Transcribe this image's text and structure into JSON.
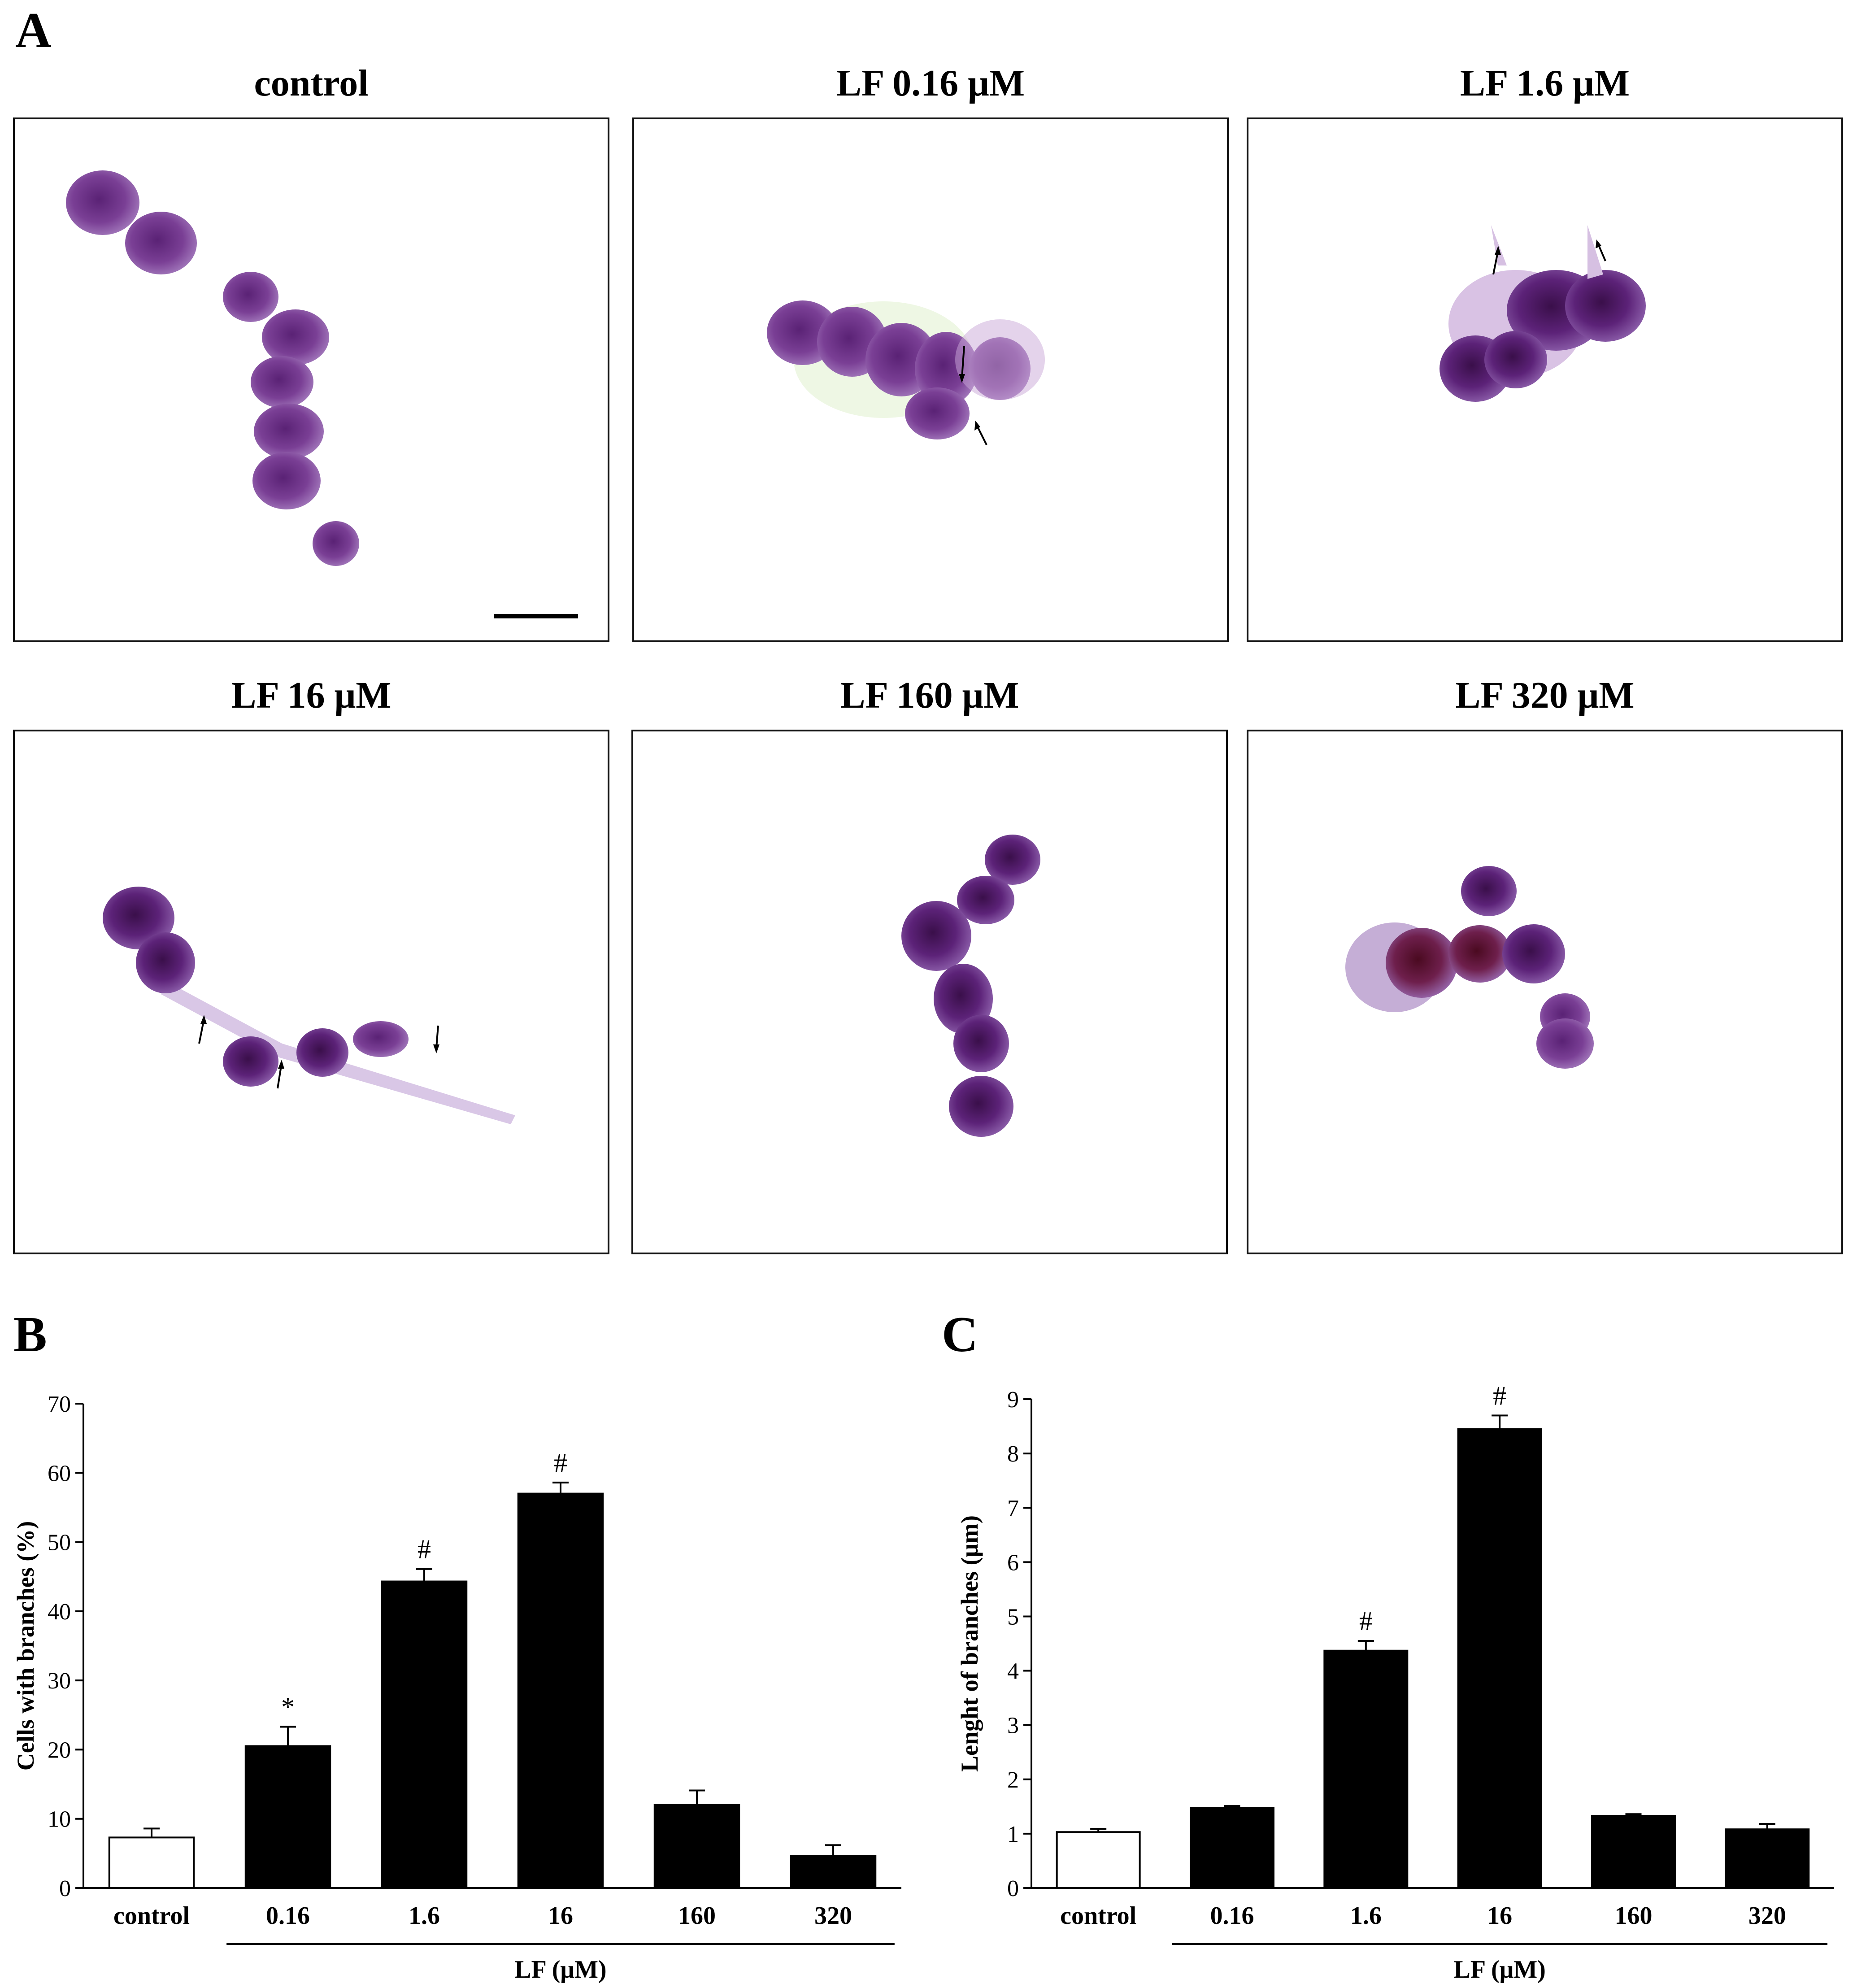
{
  "panels": {
    "a_label": "A",
    "b_label": "B",
    "c_label": "C"
  },
  "micrographs": [
    {
      "title": "control",
      "scale_bar": true
    },
    {
      "title": "LF 0.16 μM",
      "scale_bar": false
    },
    {
      "title": "LF 1.6 μM",
      "scale_bar": false
    },
    {
      "title": "LF 16 μM",
      "scale_bar": false
    },
    {
      "title": "LF 160 μM",
      "scale_bar": false
    },
    {
      "title": "LF 320 μM",
      "scale_bar": false
    }
  ],
  "colors": {
    "bar_control": "#ffffff",
    "bar_treated": "#000000",
    "stain_purple": "#7a3f95",
    "stain_dark": "#4a1560"
  },
  "chart_data": [
    {
      "panel": "B",
      "type": "bar",
      "categories": [
        "control",
        "0.16",
        "1.6",
        "16",
        "160",
        "320"
      ],
      "values": [
        7.3,
        20.5,
        44.3,
        57.0,
        12.0,
        4.6
      ],
      "errors": [
        1.3,
        2.8,
        1.8,
        1.6,
        2.1,
        1.6
      ],
      "significance": [
        "",
        "*",
        "#",
        "#",
        "",
        ""
      ],
      "ylabel": "Cells with branches (%)",
      "xlabel": "LF (μM)",
      "ylim": [
        0,
        70
      ],
      "yticks": [
        "0",
        "10",
        "20",
        "30",
        "40",
        "50",
        "60",
        "70"
      ],
      "grid": false
    },
    {
      "panel": "C",
      "type": "bar",
      "categories": [
        "control",
        "0.16",
        "1.6",
        "16",
        "160",
        "320"
      ],
      "values": [
        1.03,
        1.47,
        4.37,
        8.45,
        1.33,
        1.08
      ],
      "errors": [
        0.06,
        0.04,
        0.18,
        0.25,
        0.03,
        0.1
      ],
      "significance": [
        "",
        "",
        "#",
        "#",
        "",
        ""
      ],
      "ylabel": "Lenght of branches (μm)",
      "xlabel": "LF (μM)",
      "ylim": [
        0,
        9
      ],
      "yticks": [
        "0",
        "1",
        "2",
        "3",
        "4",
        "5",
        "6",
        "7",
        "8",
        "9"
      ],
      "grid": false
    }
  ]
}
